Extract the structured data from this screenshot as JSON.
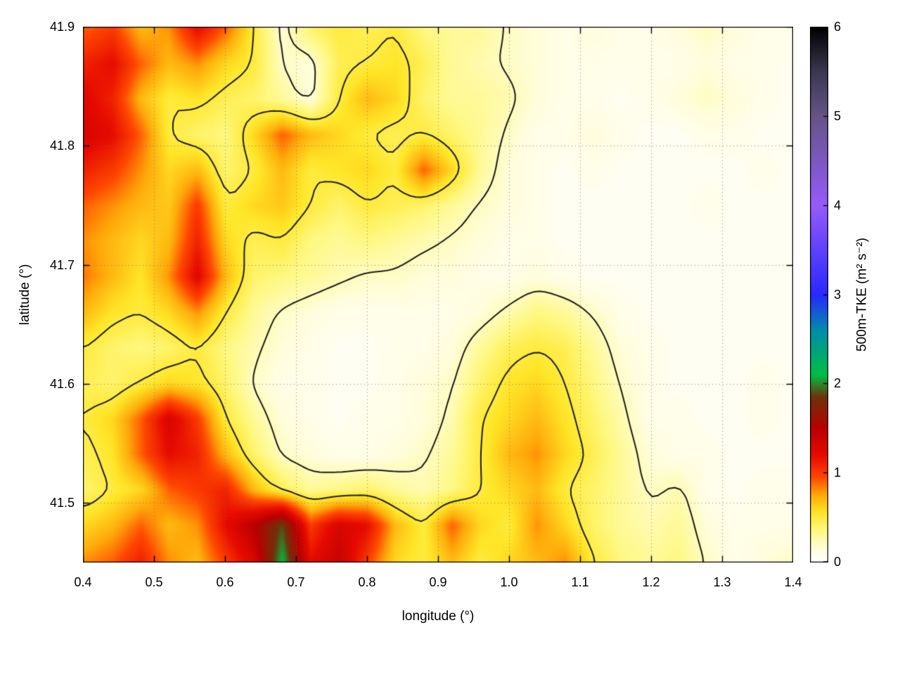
{
  "figure": {
    "background": "#ffffff",
    "xlabel": "longitude (°)",
    "ylabel": "latitude (°)",
    "colorbar_label": "500m-TKE (m² s⁻²)"
  },
  "chart_data": {
    "type": "heatmap",
    "title": "",
    "xlabel": "longitude (°)",
    "ylabel": "latitude (°)",
    "x_range": [
      0.4,
      1.4
    ],
    "y_range": [
      41.45,
      41.9
    ],
    "x_ticks": [
      0.4,
      0.5,
      0.6,
      0.7,
      0.8,
      0.9,
      1.0,
      1.1,
      1.2,
      1.3,
      1.4
    ],
    "x_tick_labels": [
      "0.4",
      "0.5",
      "0.6",
      "0.7",
      "0.8",
      "0.9",
      "1.0",
      "1.1",
      "1.2",
      "1.3",
      "1.4"
    ],
    "y_ticks": [
      41.5,
      41.6,
      41.7,
      41.8,
      41.9
    ],
    "y_tick_labels": [
      "41.5",
      "41.6",
      "41.7",
      "41.8",
      "41.9"
    ],
    "grid": true,
    "colorbar": {
      "label": "500m-TKE (m² s⁻²)",
      "min": 0,
      "max": 6,
      "ticks": [
        0,
        1,
        2,
        3,
        4,
        5,
        6
      ],
      "tick_labels": [
        "0",
        "1",
        "2",
        "3",
        "4",
        "5",
        "6"
      ],
      "position": "right"
    },
    "palette": [
      [
        0.0,
        255,
        255,
        255
      ],
      [
        0.15,
        255,
        253,
        220
      ],
      [
        0.35,
        255,
        248,
        130
      ],
      [
        0.55,
        255,
        230,
        40
      ],
      [
        0.75,
        255,
        170,
        10
      ],
      [
        0.95,
        255,
        70,
        0
      ],
      [
        1.2,
        230,
        10,
        0
      ],
      [
        1.5,
        185,
        0,
        0
      ],
      [
        1.85,
        110,
        50,
        10
      ],
      [
        2.1,
        0,
        190,
        70
      ],
      [
        2.6,
        0,
        140,
        170
      ],
      [
        3.0,
        40,
        40,
        255
      ],
      [
        4.0,
        150,
        90,
        250
      ],
      [
        5.0,
        100,
        85,
        135
      ],
      [
        5.5,
        60,
        55,
        80
      ],
      [
        6.0,
        0,
        0,
        0
      ]
    ],
    "contour_levels": [
      0.22,
      0.5
    ],
    "contour_color": "#1c1c1c",
    "grid_nx": 26,
    "grid_ny": 16,
    "grid_x0": 0.4,
    "grid_dx": 0.04,
    "grid_y_top": 41.9,
    "grid_dy": 0.03,
    "values": [
      [
        0.9,
        1.0,
        0.7,
        0.8,
        1.2,
        0.9,
        0.5,
        0.15,
        0.4,
        0.5,
        0.45,
        0.5,
        0.35,
        0.3,
        0.3,
        0.2,
        0.15,
        0.1,
        0.15,
        0.1,
        0.1,
        0.15,
        0.2,
        0.15,
        0.1,
        0.1
      ],
      [
        1.1,
        1.2,
        0.9,
        0.7,
        0.8,
        0.6,
        0.5,
        0.2,
        0.15,
        0.45,
        0.5,
        0.55,
        0.45,
        0.3,
        0.25,
        0.2,
        0.15,
        0.1,
        0.1,
        0.1,
        0.1,
        0.1,
        0.15,
        0.1,
        0.1,
        0.05
      ],
      [
        1.25,
        1.1,
        0.7,
        0.5,
        0.55,
        0.45,
        0.4,
        0.3,
        0.15,
        0.5,
        0.7,
        0.6,
        0.4,
        0.3,
        0.3,
        0.25,
        0.15,
        0.1,
        0.1,
        0.05,
        0.1,
        0.15,
        0.2,
        0.15,
        0.1,
        0.05
      ],
      [
        1.3,
        1.2,
        0.9,
        0.5,
        0.4,
        0.35,
        0.6,
        0.9,
        0.7,
        0.6,
        0.5,
        0.45,
        0.5,
        0.4,
        0.3,
        0.2,
        0.1,
        0.1,
        0.15,
        0.1,
        0.05,
        0.05,
        0.1,
        0.1,
        0.05,
        0.05
      ],
      [
        1.1,
        1.0,
        0.8,
        0.6,
        0.7,
        0.4,
        0.5,
        0.7,
        0.5,
        0.55,
        0.6,
        0.5,
        0.9,
        0.6,
        0.3,
        0.15,
        0.1,
        0.05,
        0.1,
        0.05,
        0.05,
        0.05,
        0.05,
        0.05,
        0.1,
        0.05
      ],
      [
        0.9,
        0.8,
        0.7,
        0.65,
        1.0,
        0.5,
        0.6,
        0.65,
        0.5,
        0.4,
        0.5,
        0.45,
        0.4,
        0.3,
        0.2,
        0.15,
        0.1,
        0.05,
        0.05,
        0.05,
        0.05,
        0.05,
        0.1,
        0.05,
        0.05,
        0.05
      ],
      [
        0.8,
        0.7,
        0.6,
        0.7,
        1.1,
        0.6,
        0.45,
        0.5,
        0.35,
        0.3,
        0.35,
        0.3,
        0.25,
        0.2,
        0.15,
        0.1,
        0.1,
        0.05,
        0.05,
        0.05,
        0.05,
        0.05,
        0.05,
        0.05,
        0.05,
        0.05
      ],
      [
        0.85,
        0.7,
        0.55,
        0.8,
        1.25,
        0.7,
        0.4,
        0.35,
        0.3,
        0.25,
        0.2,
        0.2,
        0.15,
        0.15,
        0.1,
        0.1,
        0.15,
        0.1,
        0.05,
        0.05,
        0.05,
        0.05,
        0.05,
        0.05,
        0.05,
        0.05
      ],
      [
        0.7,
        0.55,
        0.5,
        0.6,
        0.8,
        0.5,
        0.3,
        0.2,
        0.15,
        0.1,
        0.1,
        0.1,
        0.1,
        0.1,
        0.15,
        0.25,
        0.35,
        0.3,
        0.2,
        0.1,
        0.05,
        0.05,
        0.05,
        0.05,
        0.05,
        0.05
      ],
      [
        0.5,
        0.4,
        0.35,
        0.4,
        0.5,
        0.35,
        0.25,
        0.15,
        0.1,
        0.05,
        0.05,
        0.1,
        0.1,
        0.15,
        0.3,
        0.45,
        0.5,
        0.45,
        0.3,
        0.15,
        0.1,
        0.05,
        0.05,
        0.05,
        0.05,
        0.05
      ],
      [
        0.45,
        0.4,
        0.5,
        0.6,
        0.55,
        0.4,
        0.2,
        0.1,
        0.1,
        0.05,
        0.05,
        0.1,
        0.15,
        0.2,
        0.4,
        0.55,
        0.6,
        0.5,
        0.35,
        0.2,
        0.1,
        0.05,
        0.05,
        0.05,
        0.1,
        0.05
      ],
      [
        0.5,
        0.6,
        0.9,
        1.3,
        1.0,
        0.5,
        0.3,
        0.15,
        0.1,
        0.05,
        0.1,
        0.1,
        0.15,
        0.25,
        0.5,
        0.6,
        0.7,
        0.55,
        0.4,
        0.25,
        0.1,
        0.1,
        0.05,
        0.05,
        0.1,
        0.05
      ],
      [
        0.45,
        0.55,
        0.9,
        1.2,
        1.1,
        0.7,
        0.4,
        0.2,
        0.15,
        0.1,
        0.1,
        0.15,
        0.2,
        0.3,
        0.5,
        0.7,
        0.8,
        0.6,
        0.45,
        0.3,
        0.15,
        0.1,
        0.1,
        0.05,
        0.05,
        0.05
      ],
      [
        0.4,
        0.5,
        0.6,
        0.9,
        1.0,
        1.1,
        0.7,
        0.45,
        0.3,
        0.35,
        0.4,
        0.3,
        0.25,
        0.35,
        0.5,
        0.6,
        0.7,
        0.5,
        0.4,
        0.3,
        0.2,
        0.25,
        0.1,
        0.05,
        0.1,
        0.1
      ],
      [
        0.6,
        0.7,
        0.9,
        0.7,
        0.8,
        1.2,
        1.5,
        1.9,
        1.0,
        1.3,
        1.2,
        0.7,
        0.5,
        0.9,
        0.6,
        0.5,
        0.8,
        0.6,
        0.4,
        0.3,
        0.25,
        0.3,
        0.15,
        0.1,
        0.1,
        0.1
      ],
      [
        0.8,
        0.9,
        1.1,
        0.8,
        0.7,
        1.0,
        1.3,
        2.1,
        1.2,
        1.4,
        1.0,
        0.6,
        0.5,
        0.7,
        0.5,
        0.6,
        0.7,
        0.8,
        0.5,
        0.35,
        0.3,
        0.35,
        0.2,
        0.1,
        0.15,
        0.2
      ]
    ]
  }
}
